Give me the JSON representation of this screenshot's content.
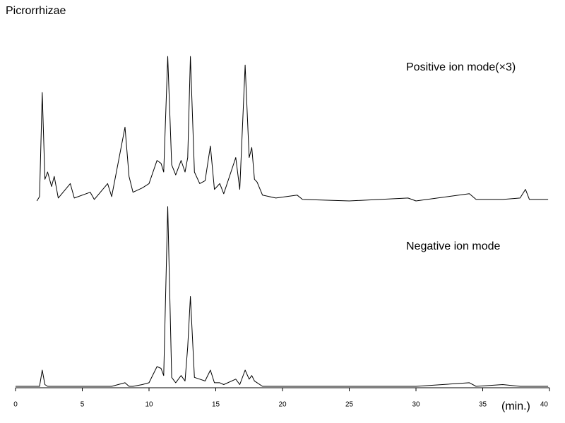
{
  "chart_data": {
    "type": "line",
    "title": "Picrorrhizae",
    "x_label": "(min.)",
    "x": [
      0,
      1.6,
      1.8,
      2.0,
      2.2,
      2.4,
      2.7,
      2.9,
      3.2,
      4.1,
      4.4,
      5.6,
      5.9,
      6.9,
      7.2,
      8.2,
      8.5,
      8.8,
      9.5,
      10.0,
      10.6,
      10.9,
      11.1,
      11.4,
      11.7,
      12.0,
      12.4,
      12.7,
      12.9,
      13.1,
      13.4,
      13.8,
      14.2,
      14.6,
      14.9,
      15.3,
      15.6,
      16.5,
      16.8,
      17.2,
      17.5,
      17.7,
      17.9,
      18.1,
      18.5,
      19.5,
      21.1,
      21.5,
      25,
      29.4,
      30,
      34.0,
      34.5,
      36.5,
      37.8,
      38.2,
      38.5,
      39.9
    ],
    "xlim": [
      0,
      40
    ],
    "xticks": [
      0,
      5,
      10,
      15,
      20,
      25,
      30,
      35,
      40
    ],
    "ylim": [
      0,
      100
    ],
    "series": [
      {
        "name": "Positive ion mode(×3)",
        "color": "#000000",
        "values": [
          null,
          0,
          3,
          75,
          15,
          20,
          10,
          17,
          2,
          12,
          2,
          6,
          1,
          12,
          3,
          51,
          17,
          6,
          9,
          12,
          28,
          26,
          20,
          100,
          25,
          18,
          28,
          20,
          30,
          100,
          20,
          12,
          14,
          38,
          8,
          12,
          5,
          30,
          8,
          94,
          30,
          37,
          15,
          13,
          4,
          2,
          4,
          1,
          0,
          2,
          0,
          5,
          1,
          1,
          2,
          8,
          1,
          1
        ]
      },
      {
        "name": "Negative ion mode",
        "color": "#000000",
        "values": [
          0,
          0,
          0,
          9,
          1,
          0,
          0,
          0,
          0,
          0,
          0,
          0,
          0,
          0,
          0,
          2,
          0,
          0,
          1,
          2,
          11,
          10,
          6,
          100,
          5,
          2,
          6,
          3,
          22,
          50,
          5,
          4,
          3,
          9,
          2,
          2,
          1,
          4,
          1,
          9,
          4,
          6,
          3,
          2,
          0,
          0,
          0,
          0,
          0,
          0,
          0,
          2,
          0,
          1,
          0,
          0,
          0,
          0
        ]
      }
    ]
  }
}
